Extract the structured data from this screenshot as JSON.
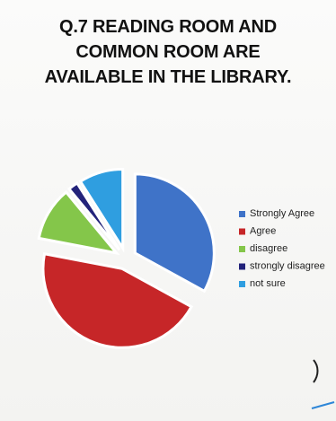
{
  "title_lines": [
    "Q.7 READING ROOM AND",
    "COMMON ROOM ARE",
    "AVAILABLE IN THE LIBRARY."
  ],
  "chart_data": {
    "type": "pie",
    "title": "Q.7 READING ROOM AND COMMON ROOM ARE AVAILABLE IN THE LIBRARY.",
    "categories": [
      "Strongly Agree",
      "Agree",
      "disagree",
      "strongly disagree",
      "not sure"
    ],
    "values": [
      33,
      45,
      11,
      2,
      9
    ],
    "units": "approximate percent",
    "exploded": true,
    "legend_position": "right",
    "colors": [
      "#3f73c8",
      "#c62628",
      "#84c64a",
      "#23237a",
      "#2f9ee0"
    ]
  }
}
